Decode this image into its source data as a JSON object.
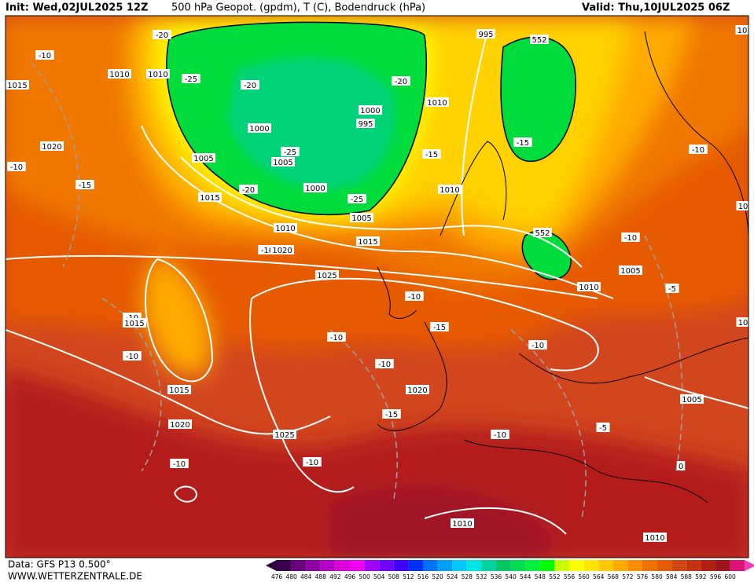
{
  "header": {
    "init": "Init: Wed,02JUL2025 12Z",
    "title": "500 hPa Geopot. (gpdm), T (C), Bodendruck (hPa)",
    "valid": "Valid: Thu,10JUL2025 06Z"
  },
  "footer": {
    "data": "Data: GFS P13 0.500°",
    "site": "WWW.WETTERZENTRALE.DE"
  },
  "colorbar": {
    "labels": [
      "476",
      "480",
      "484",
      "488",
      "492",
      "496",
      "500",
      "504",
      "508",
      "512",
      "516",
      "520",
      "524",
      "528",
      "532",
      "536",
      "540",
      "544",
      "548",
      "552",
      "556",
      "560",
      "564",
      "568",
      "572",
      "576",
      "580",
      "584",
      "588",
      "592",
      "596",
      "600"
    ]
  },
  "map": {
    "labels": [
      "-20",
      "-10",
      "1015",
      "1010",
      "1010",
      "-25",
      "-20",
      "995",
      "552",
      "1010",
      "-20",
      "1000",
      "995",
      "1000",
      "-25",
      "1005",
      "1005",
      "1020",
      "-10",
      "-15",
      "-15",
      "-15",
      "1010",
      "1015",
      "-20",
      "1000",
      "-25",
      "1005",
      "1010",
      "1015",
      "-10",
      "1020",
      "552",
      "-10",
      "1005",
      "1025",
      "1010",
      "-5",
      "-10",
      "-10",
      "-15",
      "1015",
      "-10",
      "-10",
      "-10",
      "1015",
      "-10",
      "1020",
      "-15",
      "-10",
      "1005",
      "-5",
      "-10",
      "1020",
      "1025",
      "-10",
      "-10",
      "0",
      "1010",
      "1010",
      "10",
      "10",
      "10"
    ]
  }
}
